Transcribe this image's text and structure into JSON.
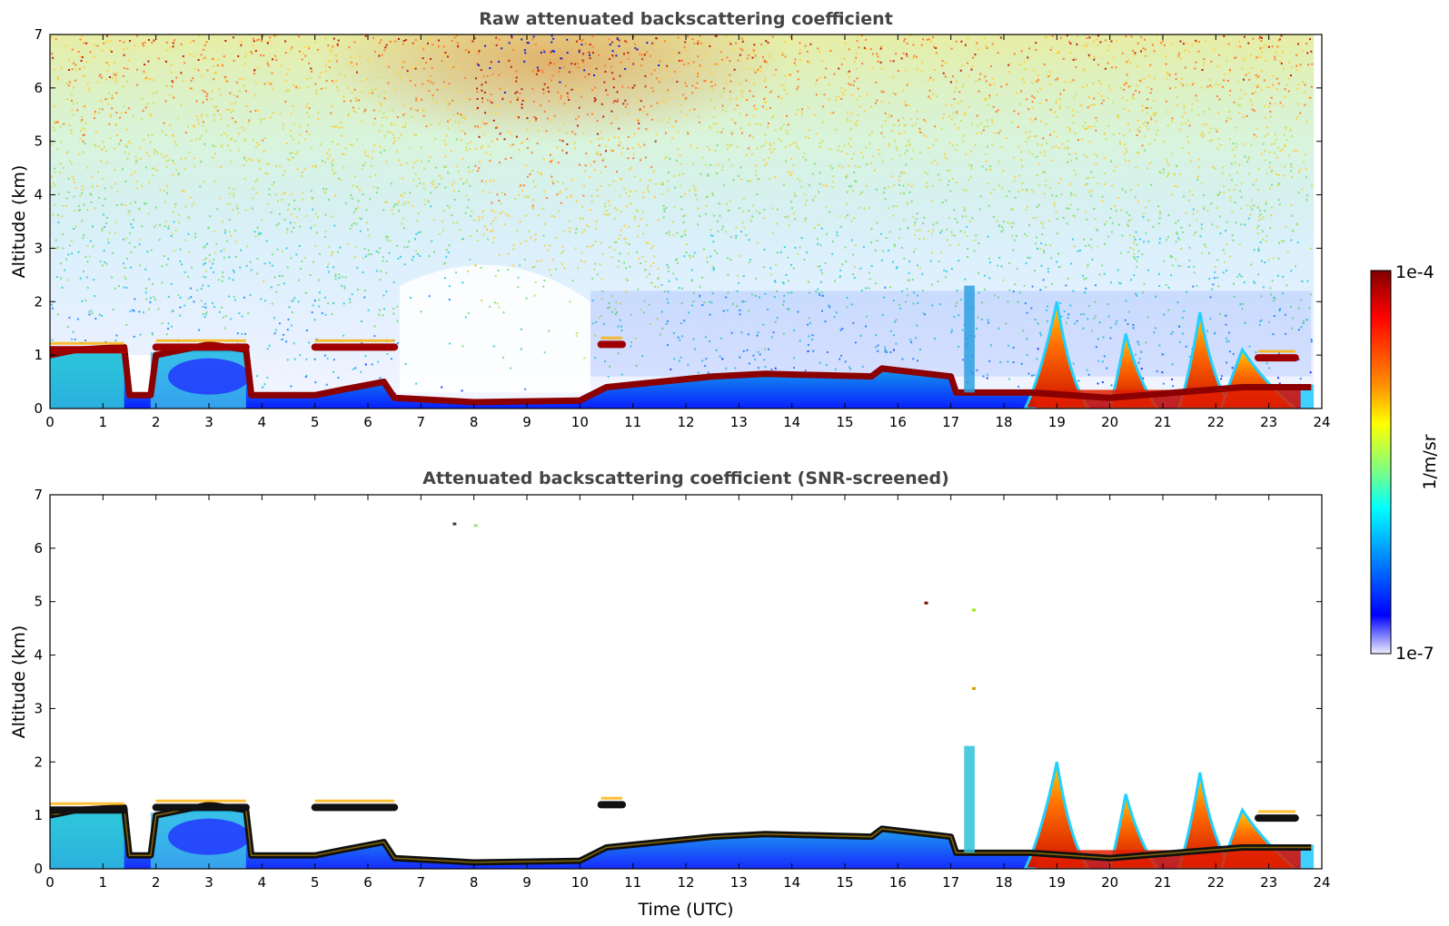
{
  "chart_data": [
    {
      "type": "heatmap",
      "title": "Raw attenuated backscattering coefficient",
      "ylabel": "Altitude (km)",
      "xlabel": "",
      "xlim": [
        0,
        24
      ],
      "ylim": [
        0,
        7
      ],
      "xticks": [
        "0",
        "1",
        "2",
        "3",
        "4",
        "5",
        "6",
        "7",
        "8",
        "9",
        "10",
        "11",
        "12",
        "13",
        "14",
        "15",
        "16",
        "17",
        "18",
        "19",
        "20",
        "21",
        "22",
        "23",
        "24"
      ],
      "yticks": [
        "0",
        "1",
        "2",
        "3",
        "4",
        "5",
        "6",
        "7"
      ],
      "boundary_layer_top_km": [
        {
          "t": 0,
          "z": 1.0
        },
        {
          "t": 0.5,
          "z": 1.1
        },
        {
          "t": 1.4,
          "z": 1.15
        },
        {
          "t": 1.5,
          "z": 0.25
        },
        {
          "t": 1.9,
          "z": 0.25
        },
        {
          "t": 2.0,
          "z": 1.0
        },
        {
          "t": 3.0,
          "z": 1.2
        },
        {
          "t": 3.7,
          "z": 1.1
        },
        {
          "t": 3.8,
          "z": 0.25
        },
        {
          "t": 5.0,
          "z": 0.25
        },
        {
          "t": 5.5,
          "z": 0.35
        },
        {
          "t": 6.3,
          "z": 0.5
        },
        {
          "t": 6.5,
          "z": 0.2
        },
        {
          "t": 8.0,
          "z": 0.12
        },
        {
          "t": 10.0,
          "z": 0.15
        },
        {
          "t": 10.5,
          "z": 0.4
        },
        {
          "t": 11.0,
          "z": 0.45
        },
        {
          "t": 12.5,
          "z": 0.6
        },
        {
          "t": 13.5,
          "z": 0.65
        },
        {
          "t": 15.5,
          "z": 0.6
        },
        {
          "t": 15.7,
          "z": 0.75
        },
        {
          "t": 17.0,
          "z": 0.6
        },
        {
          "t": 17.1,
          "z": 0.3
        },
        {
          "t": 18.5,
          "z": 0.3
        },
        {
          "t": 20.0,
          "z": 0.2
        },
        {
          "t": 22.5,
          "z": 0.4
        },
        {
          "t": 23.8,
          "z": 0.4
        }
      ],
      "cloud_layers": [
        {
          "t0": 0.0,
          "t1": 1.4,
          "z": 1.1
        },
        {
          "t0": 2.0,
          "t1": 3.7,
          "z": 1.15
        },
        {
          "t0": 5.0,
          "t1": 6.5,
          "z": 1.15
        },
        {
          "t0": 10.4,
          "t1": 10.8,
          "z": 1.2
        },
        {
          "t0": 22.8,
          "t1": 23.5,
          "z": 0.95
        }
      ]
    },
    {
      "type": "heatmap",
      "title": "Attenuated backscattering coefficient (SNR-screened)",
      "ylabel": "Altitude (km)",
      "xlabel": "Time (UTC)",
      "xlim": [
        0,
        24
      ],
      "ylim": [
        0,
        7
      ],
      "xticks": [
        "0",
        "1",
        "2",
        "3",
        "4",
        "5",
        "6",
        "7",
        "8",
        "9",
        "10",
        "11",
        "12",
        "13",
        "14",
        "15",
        "16",
        "17",
        "18",
        "19",
        "20",
        "21",
        "22",
        "23",
        "24"
      ],
      "yticks": [
        "0",
        "1",
        "2",
        "3",
        "4",
        "5",
        "6",
        "7"
      ]
    }
  ],
  "colorbar": {
    "label": "1/m/sr",
    "max_label": "1e-4",
    "min_label": "1e-7",
    "colors": [
      "#800000",
      "#ff0000",
      "#ff8000",
      "#ffff00",
      "#80ff80",
      "#00ffff",
      "#0080ff",
      "#0000ff",
      "#eeeeff"
    ]
  }
}
